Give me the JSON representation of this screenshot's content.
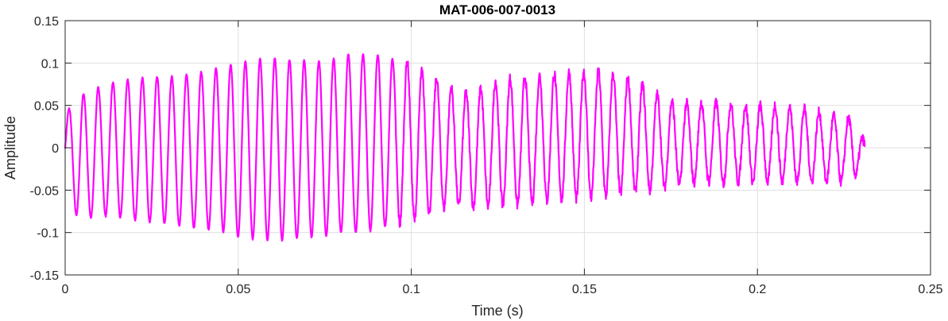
{
  "chart_data": {
    "type": "line",
    "title": "MAT-006-007-0013",
    "xlabel": "Time (s)",
    "ylabel": "Amplitude",
    "xlim": [
      0,
      0.25
    ],
    "ylim": [
      -0.15,
      0.15
    ],
    "grid": true,
    "x_ticks": [
      0,
      0.05,
      0.1,
      0.15,
      0.2,
      0.25
    ],
    "y_ticks": [
      -0.15,
      -0.1,
      -0.05,
      0,
      0.05,
      0.1,
      0.15
    ],
    "x_tick_labels": [
      "0",
      "0.05",
      "0.1",
      "0.15",
      "0.2",
      "0.25"
    ],
    "y_tick_labels": [
      "-0.15",
      "-0.1",
      "-0.05",
      "0",
      "0.05",
      "0.1",
      "0.15"
    ],
    "series": [
      {
        "color": "#ff00ff",
        "x": [
          0,
          0.002,
          0.004,
          0.007,
          0.01,
          0.015,
          0.02,
          0.025,
          0.03,
          0.035,
          0.04,
          0.045,
          0.05,
          0.055,
          0.06,
          0.065,
          0.07,
          0.075,
          0.08,
          0.083,
          0.087,
          0.09,
          0.094,
          0.097,
          0.1,
          0.103,
          0.106,
          0.11,
          0.113,
          0.116,
          0.12,
          0.125,
          0.13,
          0.135,
          0.14,
          0.145,
          0.15,
          0.155,
          0.16,
          0.165,
          0.17,
          0.175,
          0.18,
          0.185,
          0.19,
          0.195,
          0.2,
          0.205,
          0.21,
          0.215,
          0.22,
          0.225,
          0.228,
          0.231
        ],
        "upper": [
          0.035,
          0.055,
          0.062,
          0.066,
          0.072,
          0.078,
          0.082,
          0.083,
          0.084,
          0.086,
          0.09,
          0.095,
          0.1,
          0.104,
          0.106,
          0.104,
          0.103,
          0.102,
          0.108,
          0.112,
          0.11,
          0.11,
          0.105,
          0.105,
          0.1,
          0.09,
          0.085,
          0.075,
          0.068,
          0.065,
          0.07,
          0.08,
          0.083,
          0.084,
          0.087,
          0.089,
          0.09,
          0.09,
          0.085,
          0.08,
          0.065,
          0.055,
          0.052,
          0.054,
          0.053,
          0.05,
          0.05,
          0.05,
          0.048,
          0.045,
          0.04,
          0.035,
          0.035,
          0.005
        ],
        "lower": [
          -0.035,
          -0.07,
          -0.085,
          -0.083,
          -0.08,
          -0.082,
          -0.085,
          -0.088,
          -0.09,
          -0.093,
          -0.096,
          -0.098,
          -0.105,
          -0.108,
          -0.11,
          -0.108,
          -0.106,
          -0.104,
          -0.1,
          -0.1,
          -0.1,
          -0.095,
          -0.092,
          -0.09,
          -0.088,
          -0.08,
          -0.075,
          -0.07,
          -0.068,
          -0.07,
          -0.07,
          -0.069,
          -0.068,
          -0.065,
          -0.062,
          -0.06,
          -0.06,
          -0.058,
          -0.055,
          -0.052,
          -0.05,
          -0.045,
          -0.042,
          -0.04,
          -0.042,
          -0.04,
          -0.04,
          -0.04,
          -0.04,
          -0.04,
          -0.04,
          -0.04,
          -0.035,
          -0.02
        ],
        "period_s": 0.00425
      }
    ]
  }
}
